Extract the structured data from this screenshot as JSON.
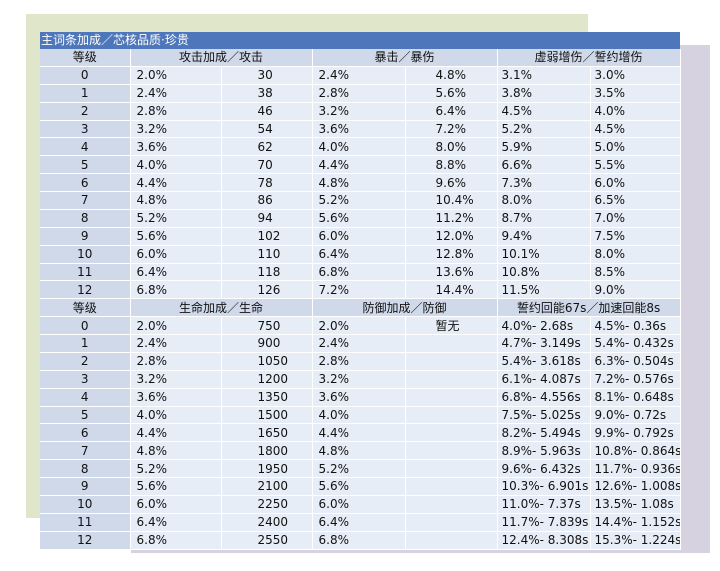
{
  "title": "主词条加成／芯核品质·珍贵",
  "section1": {
    "headers": [
      "等级",
      "攻击加成／攻击",
      "暴击／暴伤",
      "虚弱增伤／誓约增伤"
    ],
    "rows": [
      [
        "0",
        "2.0%",
        "30",
        "2.4%",
        "4.8%",
        "3.1%",
        "3.0%"
      ],
      [
        "1",
        "2.4%",
        "38",
        "2.8%",
        "5.6%",
        "3.8%",
        "3.5%"
      ],
      [
        "2",
        "2.8%",
        "46",
        "3.2%",
        "6.4%",
        "4.5%",
        "4.0%"
      ],
      [
        "3",
        "3.2%",
        "54",
        "3.6%",
        "7.2%",
        "5.2%",
        "4.5%"
      ],
      [
        "4",
        "3.6%",
        "62",
        "4.0%",
        "8.0%",
        "5.9%",
        "5.0%"
      ],
      [
        "5",
        "4.0%",
        "70",
        "4.4%",
        "8.8%",
        "6.6%",
        "5.5%"
      ],
      [
        "6",
        "4.4%",
        "78",
        "4.8%",
        "9.6%",
        "7.3%",
        "6.0%"
      ],
      [
        "7",
        "4.8%",
        "86",
        "5.2%",
        "10.4%",
        "8.0%",
        "6.5%"
      ],
      [
        "8",
        "5.2%",
        "94",
        "5.6%",
        "11.2%",
        "8.7%",
        "7.0%"
      ],
      [
        "9",
        "5.6%",
        "102",
        "6.0%",
        "12.0%",
        "9.4%",
        "7.5%"
      ],
      [
        "10",
        "6.0%",
        "110",
        "6.4%",
        "12.8%",
        "10.1%",
        "8.0%"
      ],
      [
        "11",
        "6.4%",
        "118",
        "6.8%",
        "13.6%",
        "10.8%",
        "8.5%"
      ],
      [
        "12",
        "6.8%",
        "126",
        "7.2%",
        "14.4%",
        "11.5%",
        "9.0%"
      ]
    ]
  },
  "section2": {
    "headers": [
      "等级",
      "生命加成／生命",
      "防御加成／防御",
      "誓约回能67s／加速回能8s"
    ],
    "rows": [
      [
        "0",
        "2.0%",
        "750",
        "2.0%",
        "暂无",
        "4.0%- 2.68s",
        "4.5%- 0.36s"
      ],
      [
        "1",
        "2.4%",
        "900",
        "2.4%",
        "",
        "4.7%- 3.149s",
        "5.4%- 0.432s"
      ],
      [
        "2",
        "2.8%",
        "1050",
        "2.8%",
        "",
        "5.4%- 3.618s",
        "6.3%- 0.504s"
      ],
      [
        "3",
        "3.2%",
        "1200",
        "3.2%",
        "",
        "6.1%- 4.087s",
        "7.2%- 0.576s"
      ],
      [
        "4",
        "3.6%",
        "1350",
        "3.6%",
        "",
        "6.8%- 4.556s",
        "8.1%- 0.648s"
      ],
      [
        "5",
        "4.0%",
        "1500",
        "4.0%",
        "",
        "7.5%- 5.025s",
        "9.0%- 0.72s"
      ],
      [
        "6",
        "4.4%",
        "1650",
        "4.4%",
        "",
        "8.2%- 5.494s",
        "9.9%- 0.792s"
      ],
      [
        "7",
        "4.8%",
        "1800",
        "4.8%",
        "",
        "8.9%- 5.963s",
        "10.8%- 0.864s"
      ],
      [
        "8",
        "5.2%",
        "1950",
        "5.2%",
        "",
        "9.6%- 6.432s",
        "11.7%- 0.936s"
      ],
      [
        "9",
        "5.6%",
        "2100",
        "5.6%",
        "",
        "10.3%- 6.901s",
        "12.6%- 1.008s"
      ],
      [
        "10",
        "6.0%",
        "2250",
        "6.0%",
        "",
        "11.0%- 7.37s",
        "13.5%- 1.08s"
      ],
      [
        "11",
        "6.4%",
        "2400",
        "6.4%",
        "",
        "11.7%- 7.839s",
        "14.4%- 1.152s"
      ],
      [
        "12",
        "6.8%",
        "2550",
        "6.8%",
        "",
        "12.4%- 8.308s",
        "15.3%- 1.224s"
      ]
    ]
  }
}
